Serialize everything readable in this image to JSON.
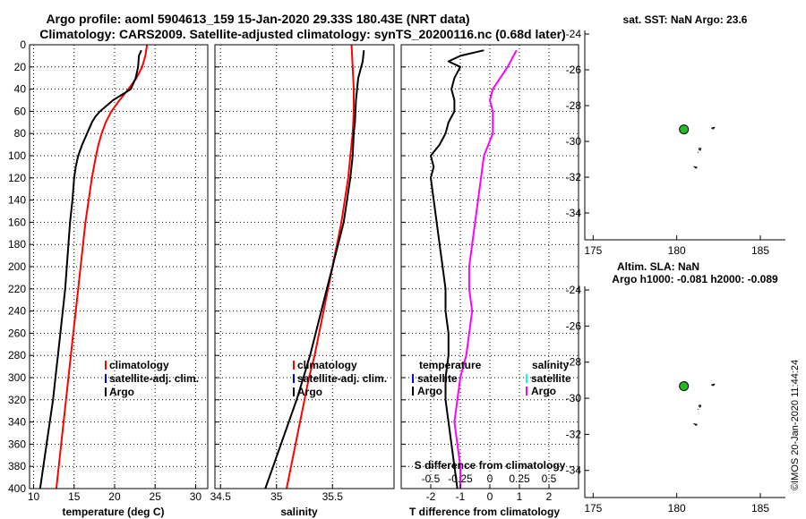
{
  "title": {
    "line1": "Argo profile: aoml 5904613_159 15-Jan-2020 29.33S 180.43E (NRT data)",
    "line2": "Climatology: CARS2009. Satellite-adjusted climatology: synTS_20200116.nc (0.68d later)"
  },
  "timestamp": "©IMOS 20-Jan-2020 11:44:24",
  "colors": {
    "argo": "#000000",
    "climatology": "#ff0000",
    "satellite": "#0000ff",
    "salinity_diff": "#ff00ff",
    "salinity_sat": "#00ffff",
    "float_marker": "#22bb22"
  },
  "legend": {
    "climatology": "climatology",
    "satellite": "satellite-adj. clim.",
    "argo": "Argo",
    "diff_temperature": "temperature",
    "diff_salinity": "salinity",
    "diff_satellite": "satellite",
    "diff_argo": "Argo"
  },
  "maps": {
    "top_title": "sat. SST: NaN Argo: 23.6",
    "bottom_title_line1": "Altim. SLA: NaN",
    "bottom_title_line2": "Argo h1000: -0.081 h2000: -0.089",
    "xlim": [
      174.5,
      186.5
    ],
    "ylim": [
      -35.5,
      -23.8
    ],
    "xticks": [
      175,
      180,
      185
    ],
    "yticks": [
      -24,
      -26,
      -28,
      -30,
      -32,
      -34
    ],
    "float_position": {
      "lon": 180.43,
      "lat": -29.33
    },
    "islands": [
      [
        [
          182.1,
          -29.25
        ],
        [
          182.25,
          -29.22
        ],
        [
          182.2,
          -29.3
        ],
        [
          182.1,
          -29.28
        ]
      ],
      [
        [
          181.35,
          -30.38
        ],
        [
          181.45,
          -30.4
        ],
        [
          181.4,
          -30.5
        ],
        [
          181.33,
          -30.45
        ]
      ],
      [
        [
          181.25,
          -30.6
        ],
        [
          181.3,
          -30.62
        ]
      ],
      [
        [
          181.05,
          -31.42
        ],
        [
          181.2,
          -31.45
        ],
        [
          181.15,
          -31.5
        ]
      ]
    ]
  },
  "chart_data": [
    {
      "type": "line",
      "panel": "temperature",
      "xlabel": "temperature (deg C)",
      "ylabel": "depth",
      "xlim": [
        9.5,
        31.5
      ],
      "ylim": [
        400,
        0
      ],
      "xticks": [
        10,
        15,
        20,
        25,
        30
      ],
      "yticks": [
        0,
        20,
        40,
        60,
        80,
        100,
        120,
        140,
        160,
        180,
        200,
        220,
        240,
        260,
        280,
        300,
        320,
        340,
        360,
        380,
        400
      ],
      "grid": true,
      "legend_placement": "lower-right",
      "series": [
        {
          "name": "climatology",
          "color": "#ff0000",
          "depth": [
            0,
            10,
            20,
            30,
            40,
            50,
            60,
            70,
            80,
            90,
            100,
            120,
            140,
            160,
            180,
            200,
            220,
            240,
            260,
            280,
            300,
            320,
            340,
            360,
            380,
            400
          ],
          "values": [
            24.0,
            23.8,
            23.4,
            22.7,
            21.7,
            20.6,
            19.6,
            18.9,
            18.4,
            18.0,
            17.7,
            17.2,
            16.8,
            16.4,
            16.1,
            15.8,
            15.5,
            15.2,
            14.9,
            14.6,
            14.3,
            14.0,
            13.7,
            13.4,
            13.1,
            12.8
          ]
        },
        {
          "name": "Argo",
          "color": "#000000",
          "depth": [
            5,
            10,
            20,
            30,
            40,
            50,
            55,
            60,
            65,
            70,
            80,
            90,
            100,
            110,
            120,
            140,
            160,
            180,
            200,
            220,
            240,
            260,
            280,
            300,
            320,
            340,
            360,
            380,
            400
          ],
          "values": [
            23.3,
            23.0,
            22.9,
            22.6,
            22.0,
            19.8,
            19.0,
            18.2,
            17.6,
            17.2,
            16.6,
            16.0,
            15.5,
            15.2,
            15.0,
            14.8,
            14.5,
            14.3,
            14.1,
            13.9,
            13.6,
            13.3,
            13.0,
            12.7,
            12.4,
            12.0,
            11.6,
            11.2,
            10.8
          ]
        }
      ]
    },
    {
      "type": "line",
      "panel": "salinity",
      "xlabel": "salinity",
      "ylabel": "depth",
      "xlim": [
        34.45,
        36.05
      ],
      "ylim": [
        400,
        0
      ],
      "xticks": [
        34.5,
        35,
        35.5
      ],
      "xtick_labels": [
        "34.5",
        "35",
        "35.5"
      ],
      "grid": true,
      "legend_placement": "lower-right",
      "series": [
        {
          "name": "climatology",
          "color": "#ff0000",
          "depth": [
            0,
            20,
            40,
            60,
            80,
            100,
            120,
            140,
            160,
            180,
            200,
            220,
            240,
            260,
            280,
            300,
            320,
            340,
            360,
            380,
            400
          ],
          "values": [
            35.67,
            35.68,
            35.69,
            35.69,
            35.68,
            35.66,
            35.64,
            35.61,
            35.58,
            35.54,
            35.5,
            35.46,
            35.42,
            35.38,
            35.34,
            35.29,
            35.25,
            35.21,
            35.17,
            35.13,
            35.09
          ]
        },
        {
          "name": "Argo",
          "color": "#000000",
          "depth": [
            5,
            15,
            30,
            50,
            70,
            80,
            100,
            120,
            140,
            160,
            180,
            200,
            220,
            240,
            260,
            280,
            300,
            320,
            340,
            360,
            380,
            400
          ],
          "values": [
            35.78,
            35.77,
            35.73,
            35.71,
            35.7,
            35.69,
            35.68,
            35.66,
            35.63,
            35.6,
            35.55,
            35.5,
            35.45,
            35.4,
            35.35,
            35.3,
            35.24,
            35.18,
            35.11,
            35.04,
            34.97,
            34.9
          ]
        }
      ]
    },
    {
      "type": "line",
      "panel": "difference",
      "xlabel": "T difference from climatology",
      "xlabel_top": "S difference from climatology",
      "ylabel": "depth",
      "xlim": [
        -3,
        3
      ],
      "ylim": [
        400,
        0
      ],
      "xticks": [
        -2,
        -1,
        0,
        1,
        2
      ],
      "xticks_secondary": [
        "-0.5",
        "-0.25",
        "0",
        "0.25",
        "0.5"
      ],
      "grid": true,
      "legend_placement": "lower-center",
      "series": [
        {
          "name": "temperature Argo",
          "color": "#000000",
          "depth": [
            5,
            10,
            15,
            20,
            30,
            40,
            50,
            60,
            70,
            80,
            90,
            100,
            110,
            120,
            140,
            160,
            180,
            200,
            220,
            240,
            260,
            280,
            300,
            320,
            340,
            360,
            380,
            400
          ],
          "values": [
            -0.2,
            -1.0,
            -1.4,
            -1.0,
            -1.2,
            -1.3,
            -1.2,
            -1.2,
            -1.4,
            -1.5,
            -1.7,
            -2.0,
            -1.9,
            -2.0,
            -1.9,
            -1.8,
            -1.7,
            -1.6,
            -1.5,
            -1.5,
            -1.4,
            -1.4,
            -1.5,
            -1.5,
            -1.4,
            -1.3,
            -1.2,
            -1.1
          ]
        },
        {
          "name": "salinity Argo",
          "color": "#ff00ff",
          "depth": [
            5,
            20,
            40,
            50,
            60,
            80,
            100,
            120,
            140,
            160,
            180,
            200,
            220,
            240,
            260,
            280,
            300,
            320,
            340,
            360,
            380,
            400
          ],
          "values": [
            0.9,
            0.6,
            0.1,
            0.0,
            0.1,
            0.1,
            -0.2,
            -0.3,
            -0.4,
            -0.5,
            -0.6,
            -0.7,
            -0.7,
            -0.6,
            -0.7,
            -0.8,
            -1.0,
            -1.1,
            -1.2,
            -1.1,
            -1.0,
            -1.0
          ]
        }
      ]
    }
  ]
}
